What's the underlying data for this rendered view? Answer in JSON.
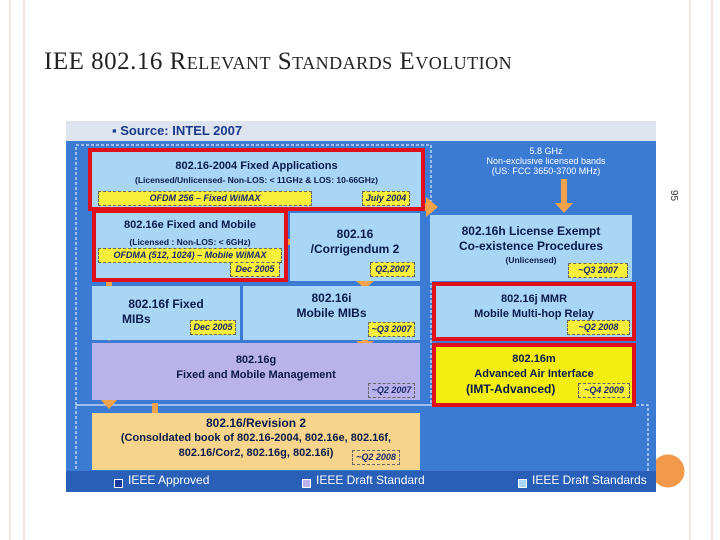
{
  "slide": {
    "title": "IEE 802.16 Relevant Standards Evolution",
    "page_number": "95"
  },
  "diagram": {
    "source": "Source: INTEL 2007",
    "note": [
      "5.8 GHz",
      "Non-exclusive licensed bands",
      "(US: FCC 3650-3700 MHz)"
    ],
    "boxes": [
      {
        "lines": [
          "802.16-2004 Fixed Applications",
          "(Licensed/Unlicensed- Non-LOS: < 11GHz & LOS: 10-66GHz)"
        ],
        "tag": "OFDM 256 – Fixed WiMAX",
        "date": "July 2004"
      },
      {
        "lines": [
          "802.16e Fixed and Mobile",
          "(Licensed : Non-LOS: < 6GHz)"
        ],
        "tag": "OFDMA (512, 1024) – Mobile WiMAX",
        "date": "Dec 2005"
      },
      {
        "lines": [
          "802.16",
          "/Corrigendum 2"
        ],
        "date": "Q2,2007"
      },
      {
        "lines": [
          "802.16h License Exempt",
          "Co-existence Procedures",
          "(Unlicensed)"
        ],
        "date": "~Q3 2007"
      },
      {
        "lines": [
          "802.16f Fixed",
          "MIBs"
        ],
        "date": "Dec 2005"
      },
      {
        "lines": [
          "802.16i",
          "Mobile MIBs"
        ],
        "date": "~Q3 2007"
      },
      {
        "lines": [
          "802.16j MMR",
          "Mobile Multi-hop Relay"
        ],
        "date": "~Q2 2008"
      },
      {
        "lines": [
          "802.16g",
          "Fixed and Mobile Management"
        ],
        "date": "~Q2 2007"
      },
      {
        "lines": [
          "802.16m",
          "Advanced Air Interface",
          "(IMT-Advanced)"
        ],
        "date": "~Q4 2009"
      },
      {
        "lines": [
          "802.16/Revision 2",
          "(Consoldated book of 802.16-2004, 802.16e, 802.16f,",
          "802.16/Cor2, 802.16g, 802.16i)"
        ],
        "date": "~Q2 2008"
      }
    ],
    "legend": [
      "IEEE Approved",
      "IEEE Draft Standard",
      "IEEE Draft Standards"
    ]
  }
}
